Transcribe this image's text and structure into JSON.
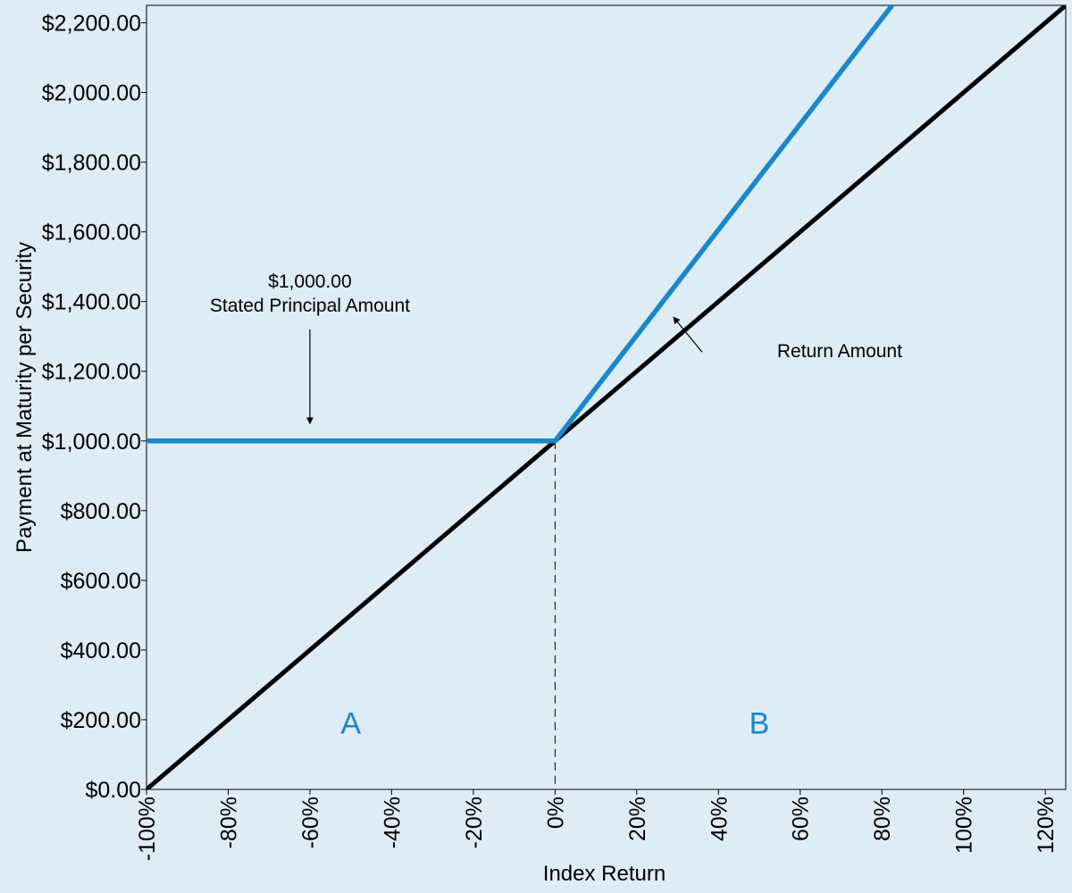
{
  "colors": {
    "background": "#deecf5",
    "payment_line": "#1a88c9",
    "return_line": "#000000",
    "region_label": "#1a88c9"
  },
  "chart_data": {
    "type": "line",
    "xlabel": "Index Return",
    "ylabel": "Payment at Maturity per Security",
    "xlim": [
      -100,
      125
    ],
    "ylim": [
      0,
      2250
    ],
    "xticks": [
      -100,
      -80,
      -60,
      -40,
      -20,
      0,
      20,
      40,
      60,
      80,
      100,
      120
    ],
    "xtick_labels": [
      "-100%",
      "-80%",
      "-60%",
      "-40%",
      "-20%",
      "0%",
      "20%",
      "40%",
      "60%",
      "80%",
      "100%",
      "120%"
    ],
    "yticks": [
      0,
      200,
      400,
      600,
      800,
      1000,
      1200,
      1400,
      1600,
      1800,
      2000,
      2200
    ],
    "ytick_labels": [
      "$0.00",
      "$200.00",
      "$400.00",
      "$600.00",
      "$800.00",
      "$1,000.00",
      "$1,200.00",
      "$1,400.00",
      "$1,600.00",
      "$1,800.00",
      "$2,000.00",
      "$2,200.00"
    ],
    "grid": false,
    "series": [
      {
        "id": "payment-at-maturity",
        "color": "#1a88c9",
        "x": [
          -100,
          0,
          82.5
        ],
        "y": [
          1000,
          1000,
          2250
        ]
      },
      {
        "id": "return-amount",
        "name": "Return Amount",
        "color": "#000000",
        "x": [
          -100,
          125
        ],
        "y": [
          0,
          2250
        ]
      }
    ],
    "reference_line": {
      "x": 0,
      "y_from": 0,
      "y_to": 1000,
      "style": "dashed"
    },
    "annotations": [
      {
        "id": "principal",
        "lines": [
          "$1,000.00",
          "Stated Principal Amount"
        ],
        "text_at": [
          -60,
          1440
        ],
        "arrow_from": [
          -60,
          1320
        ],
        "arrow_to": [
          -60,
          1050
        ]
      },
      {
        "id": "return-amount",
        "lines": [
          "Return Amount"
        ],
        "text_at": [
          55,
          1240
        ],
        "arrow_from": [
          36,
          1255
        ],
        "arrow_to": [
          29,
          1355
        ]
      }
    ],
    "regions": [
      {
        "label": "A",
        "x": -50,
        "y": 160
      },
      {
        "label": "B",
        "x": 50,
        "y": 160
      }
    ]
  }
}
